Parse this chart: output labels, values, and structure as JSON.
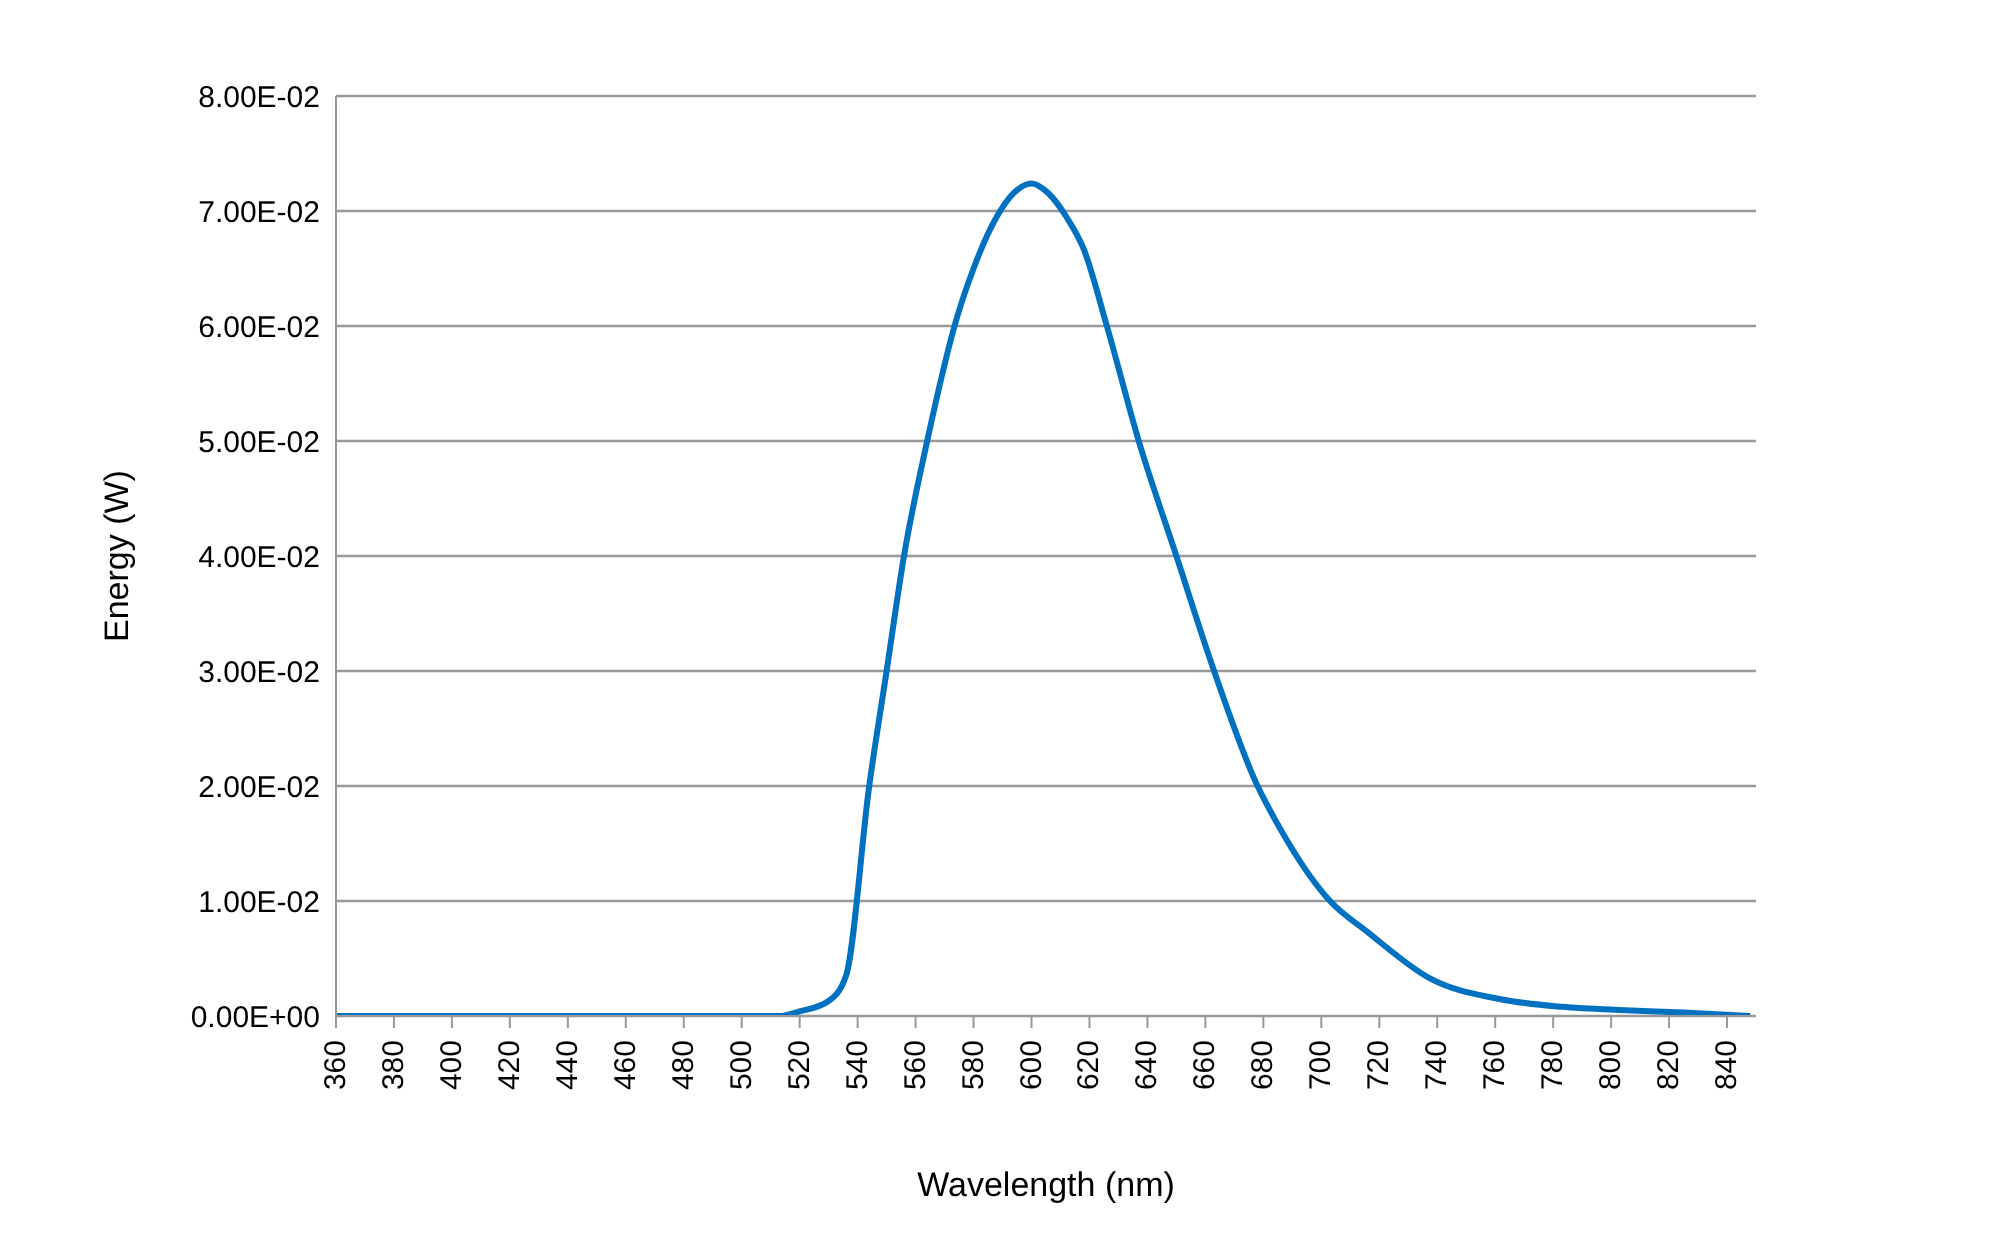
{
  "chart_data": {
    "type": "line",
    "xlabel": "Wavelength (nm)",
    "ylabel": "Energy (W)",
    "x": [
      360,
      400,
      450,
      500,
      513,
      520,
      530,
      536,
      544,
      550,
      556,
      564,
      574,
      580,
      588,
      594,
      600,
      606,
      612,
      618,
      626,
      637,
      650,
      663,
      678,
      684,
      703,
      716,
      738,
      761,
      783,
      805,
      825,
      848
    ],
    "series": [
      {
        "color": "#0070c0",
        "values": [
          0,
          0,
          0,
          0,
          0,
          0.0004,
          0.0013,
          0.0035,
          0.02,
          0.03,
          0.04,
          0.05,
          0.0605,
          0.065,
          0.0695,
          0.0716,
          0.0724,
          0.0715,
          0.0695,
          0.0667,
          0.06,
          0.05,
          0.04,
          0.03,
          0.02,
          0.0171,
          0.01,
          0.0073,
          0.0032,
          0.0015,
          0.0008,
          0.0005,
          0.0003,
          0
        ]
      }
    ],
    "xlim": [
      360,
      850
    ],
    "xticks": [
      360,
      380,
      400,
      420,
      440,
      460,
      480,
      500,
      520,
      540,
      560,
      580,
      600,
      620,
      640,
      660,
      680,
      700,
      720,
      740,
      760,
      780,
      800,
      820,
      840
    ],
    "ylim": [
      0,
      0.08
    ],
    "yticks": [
      {
        "value": 0,
        "label": "0.00E+00"
      },
      {
        "value": 0.01,
        "label": "1.00E-02"
      },
      {
        "value": 0.02,
        "label": "2.00E-02"
      },
      {
        "value": 0.03,
        "label": "3.00E-02"
      },
      {
        "value": 0.04,
        "label": "4.00E-02"
      },
      {
        "value": 0.05,
        "label": "5.00E-02"
      },
      {
        "value": 0.06,
        "label": "6.00E-02"
      },
      {
        "value": 0.07,
        "label": "7.00E-02"
      },
      {
        "value": 0.08,
        "label": "8.00E-02"
      }
    ],
    "grid": "y",
    "legend": false,
    "marker": "none",
    "line_style": "solid"
  }
}
